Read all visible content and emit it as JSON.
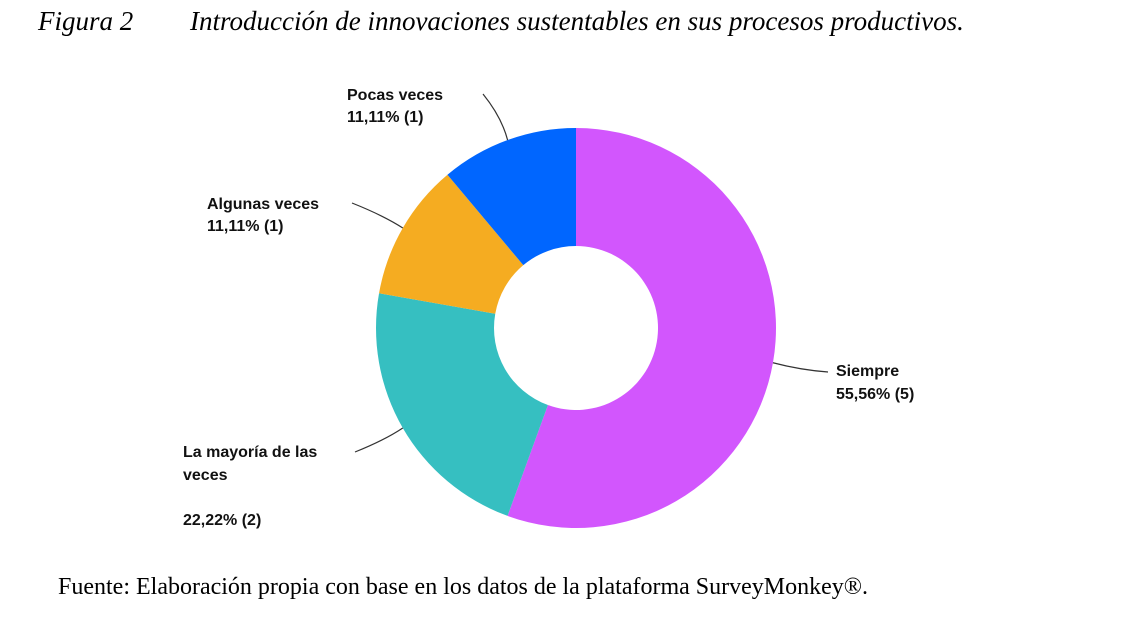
{
  "figure": {
    "number": "Figura 2",
    "title": "Introducción de innovaciones sustentables en sus procesos productivos."
  },
  "source_note": "Fuente: Elaboración propia con base en los datos de la plataforma SurveyMonkey®.",
  "chart_data": {
    "type": "pie",
    "donut": true,
    "title": "Introducción de innovaciones sustentables en sus procesos productivos.",
    "slices": [
      {
        "label": "Siempre",
        "percent_label": "55,56% (5)",
        "value": 55.56,
        "count": 5,
        "color": "#d256fd"
      },
      {
        "label": "La mayoría de las veces",
        "percent_label": "22,22% (2)",
        "value": 22.22,
        "count": 2,
        "color": "#36bfc1"
      },
      {
        "label": "Algunas veces",
        "percent_label": "11,11% (1)",
        "value": 11.11,
        "count": 1,
        "color": "#f5ac21"
      },
      {
        "label": "Pocas veces",
        "percent_label": "11,11% (1)",
        "value": 11.11,
        "count": 1,
        "color": "#0066ff"
      }
    ],
    "legend": "none",
    "label_lines": [
      "La mayoría de las",
      "veces"
    ]
  }
}
